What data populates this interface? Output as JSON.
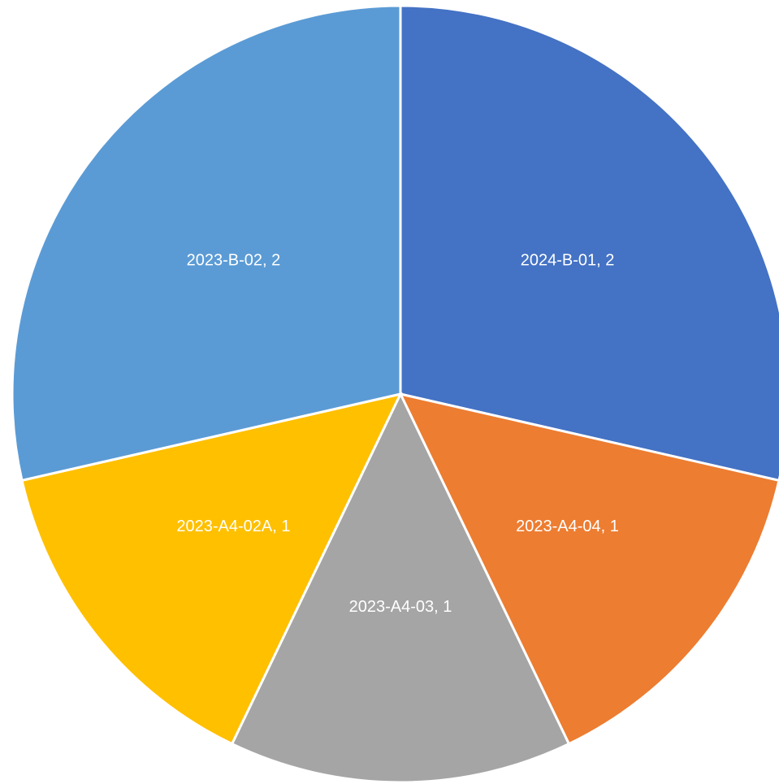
{
  "chart_data": {
    "type": "pie",
    "values": [
      2,
      1,
      1,
      1,
      2
    ],
    "value_labels": [
      "2024-B-01, 2",
      "2023-A4-04, 1",
      "2023-A4-03, 1",
      "2023-A4-02A, 1",
      "2023-B-02, 2"
    ],
    "colors": [
      "#4472c4",
      "#ed7d31",
      "#a5a5a5",
      "#ffc000",
      "#5b9bd5"
    ]
  }
}
